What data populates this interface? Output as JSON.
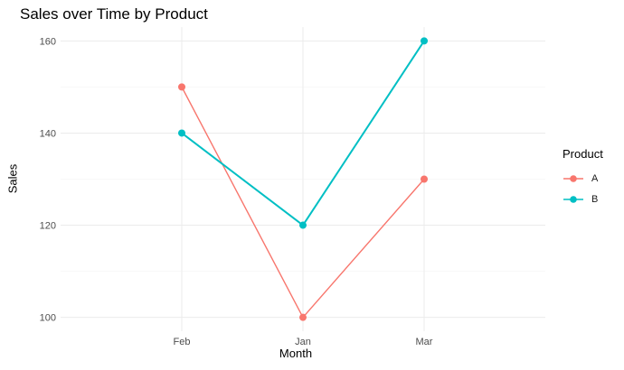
{
  "chart_data": {
    "type": "line",
    "title": "Sales over Time by Product",
    "xlabel": "Month",
    "ylabel": "Sales",
    "categories": [
      "Feb",
      "Jan",
      "Mar"
    ],
    "ylim": [
      97,
      163
    ],
    "y_ticks": [
      100,
      120,
      140,
      160
    ],
    "grid": true,
    "legend": {
      "title": "Product",
      "position": "right"
    },
    "series": [
      {
        "name": "A",
        "values": [
          150,
          100,
          130
        ],
        "color": "#F8766D"
      },
      {
        "name": "B",
        "values": [
          140,
          120,
          160
        ],
        "color": "#00BFC4"
      }
    ]
  }
}
